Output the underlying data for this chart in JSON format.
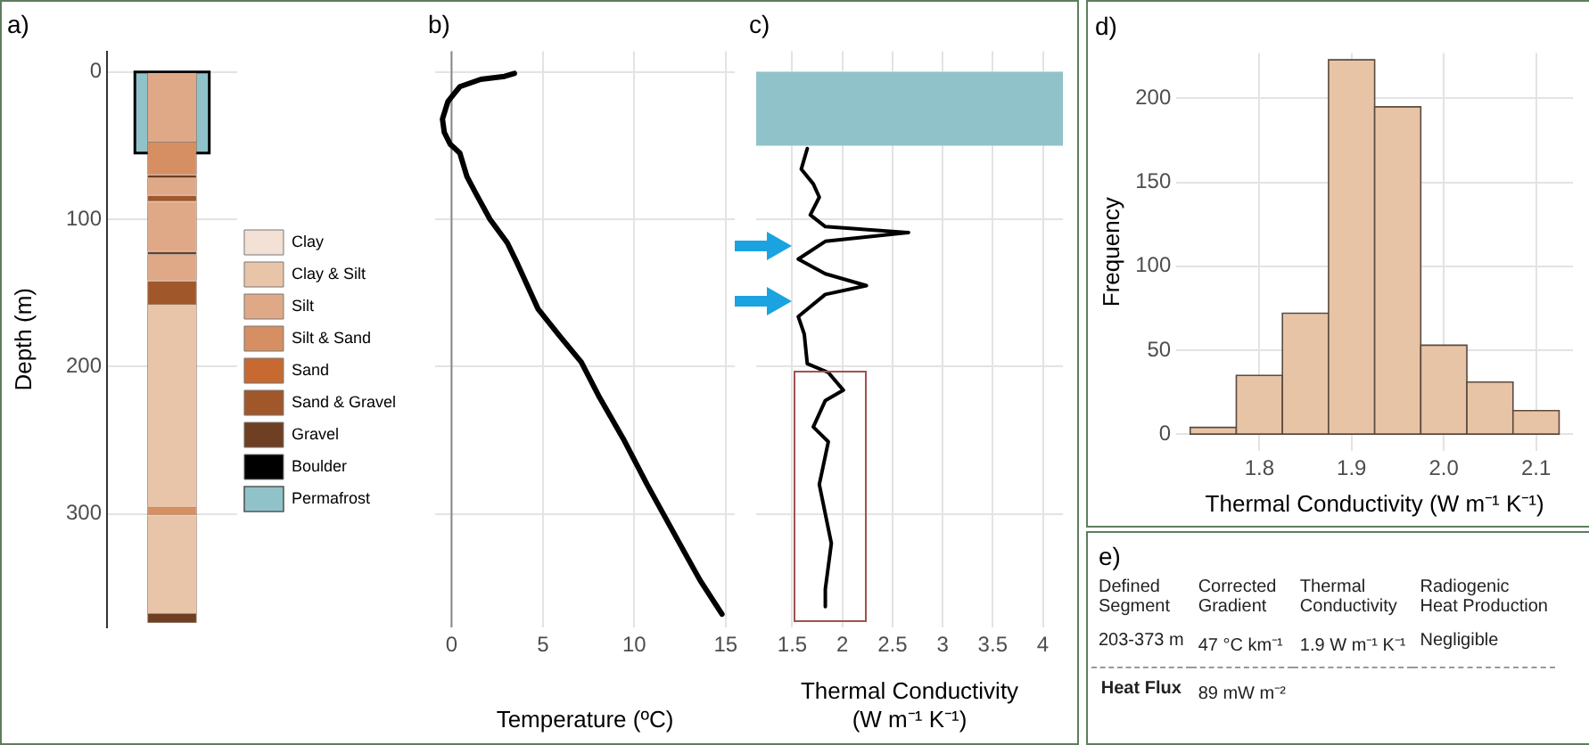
{
  "chart_data": [
    {
      "type": "bar",
      "title": "a)",
      "ylabel": "Depth (m)",
      "categories": [
        null
      ],
      "stacked": true,
      "series": [
        {
          "color": "#dfa988",
          "values": [
            48
          ]
        },
        {
          "color": "#d68f63",
          "values": [
            22
          ]
        },
        {
          "color": "#6e3f22",
          "values": [
            2
          ]
        },
        {
          "color": "#dfa988",
          "values": [
            12
          ]
        },
        {
          "color": "#a0582b",
          "values": [
            4
          ]
        },
        {
          "color": "#dfa988",
          "values": [
            34
          ]
        },
        {
          "color": "#6e3f22",
          "values": [
            2
          ]
        },
        {
          "color": "#dfa988",
          "values": [
            18
          ]
        },
        {
          "color": "#a0582b",
          "values": [
            16
          ]
        },
        {
          "color": "#e8c4a8",
          "values": [
            138
          ]
        },
        {
          "color": "#d68f63",
          "values": [
            5
          ]
        },
        {
          "color": "#e8c4a8",
          "values": [
            67
          ]
        },
        {
          "color": "#6e3f22",
          "values": [
            6
          ]
        },
        {
          "name": "Clay",
          "color": "#f3e1d5",
          "values": [
            null
          ]
        },
        {
          "name": "Clay & Silt",
          "color": "#e8c4a8",
          "values": [
            null
          ]
        },
        {
          "name": "Silt",
          "color": "#dfa988",
          "values": [
            null
          ]
        },
        {
          "name": "Silt & Sand",
          "color": "#d68f63",
          "values": [
            null
          ]
        },
        {
          "name": "Sand",
          "color": "#c76a32",
          "values": [
            null
          ]
        },
        {
          "name": "Sand & Gravel",
          "color": "#a0582b",
          "values": [
            null
          ]
        },
        {
          "name": "Gravel",
          "color": "#6e3f22",
          "values": [
            null
          ]
        },
        {
          "name": "Boulder",
          "color": "#000000",
          "values": [
            null
          ]
        }
      ],
      "ylim": [
        377,
        -14
      ],
      "yticks": [
        0,
        100,
        200,
        300
      ],
      "grid": "y",
      "legend": "right",
      "tick_labels": "y",
      "bands": [
        {
          "axis": "y",
          "from": 0,
          "to": 55,
          "label": "Permafrost",
          "color": "#8fc3c9"
        }
      ]
    },
    {
      "type": "line",
      "title": "b)",
      "xlabel": "Temperature (ºC)",
      "series": [
        {
          "color": "#000000",
          "x": [
            3.44,
            2.9,
            1.6,
            0.45,
            -0.2,
            -0.5,
            -0.4,
            -0.08,
            0.45,
            0.84,
            1.35,
            2.1,
            3.05,
            3.6,
            4.74,
            5.9,
            7.1,
            8.1,
            9.4,
            10.7,
            12.3,
            13.6,
            14.8
          ],
          "values": [
            1,
            3,
            5,
            10,
            20,
            32,
            41,
            49,
            55,
            71,
            83,
            100,
            116,
            130,
            161,
            179,
            197,
            221,
            249,
            280,
            316,
            345,
            368
          ]
        }
      ],
      "xlim": [
        -0.9,
        15.5
      ],
      "xticks": [
        0,
        5,
        10,
        15
      ],
      "ylim": [
        377,
        -14
      ],
      "yticks": [
        0,
        100,
        200,
        300
      ],
      "tick_labels": "x",
      "grid": true,
      "marker": "none",
      "line_style": "solid",
      "ref_lines": [
        {
          "axis": "x",
          "value": 0,
          "color": "#888888"
        }
      ]
    },
    {
      "type": "line",
      "title": "c)",
      "xlabel": "Thermal Conductivity\n(W m⁻¹ K⁻¹)",
      "series": [
        {
          "color": "#000000",
          "x": [
            1.65,
            1.59,
            1.71,
            1.77,
            1.68,
            1.83,
            2.66,
            1.83,
            1.56,
            1.83,
            2.24,
            1.83,
            1.56,
            1.62,
            1.65,
            1.86,
            2.01,
            1.83,
            1.71,
            1.86,
            1.77,
            1.89,
            1.83,
            1.83
          ],
          "values": [
            52,
            66,
            76,
            85,
            97,
            105,
            109,
            115,
            127,
            137,
            145,
            151,
            166,
            178,
            198,
            204,
            216,
            223,
            241,
            251,
            280,
            320,
            351,
            363
          ]
        }
      ],
      "xlim": [
        1.14,
        4.2
      ],
      "xticks": [
        1.5,
        2,
        2.5,
        3,
        3.5,
        4
      ],
      "ylim": [
        377,
        -14
      ],
      "yticks": [
        0,
        100,
        200,
        300
      ],
      "tick_labels": "x",
      "grid": true,
      "marker": "none",
      "line_style": "solid",
      "bands": [
        {
          "axis": "y",
          "from": 0,
          "to": 50,
          "color": "#8fc3c9"
        }
      ]
    },
    {
      "type": "histogram",
      "title": "d)",
      "xlabel": "Thermal Conductivity (W m⁻¹ K⁻¹)",
      "ylabel": "Frequency",
      "bins": [
        1.725,
        1.775,
        1.825,
        1.875,
        1.925,
        1.975,
        2.025,
        2.075,
        2.125
      ],
      "values": [
        4,
        35,
        72,
        223,
        195,
        53,
        31,
        14
      ],
      "color": "#e8c4a6",
      "xlim": [
        1.71,
        2.14
      ],
      "xticks": [
        1.8,
        1.9,
        {
          "value": 2,
          "label": "2.0"
        },
        2.1
      ],
      "ylim": [
        -10,
        227
      ],
      "yticks": [
        0,
        50,
        100,
        150,
        200
      ],
      "grid": true
    },
    {
      "type": "other",
      "title": "e)",
      "annotations": [
        "Defined\nSegment",
        "Corrected\nGradient",
        "Thermal\nConductivity",
        "Radiogenic\nHeat Production",
        "203-373 m",
        "47 °C km⁻¹",
        "1.9 W m⁻¹ K⁻¹",
        "Negligible",
        "Heat Flux",
        "89 mW m⁻²"
      ]
    }
  ]
}
